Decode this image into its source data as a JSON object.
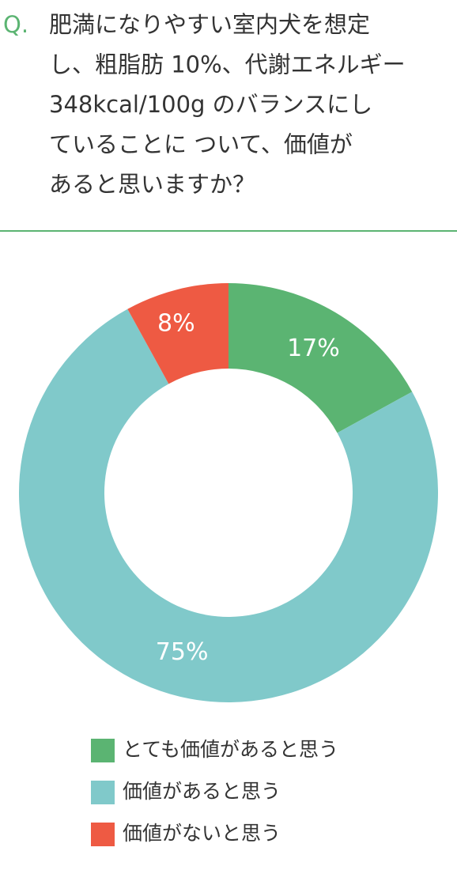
{
  "question": {
    "marker": "Q.",
    "lines": [
      "肥満になりやすい室内犬を想定",
      "し、粗脂肪 10%、代謝エネルギー",
      "348kcal/100g のバランスにし",
      "ていることに ついて、価値が",
      "あると思いますか？"
    ]
  },
  "chart_data": {
    "type": "donut",
    "categories": [
      "とても価値があると思う",
      "価値があると思う",
      "価値がないと思う"
    ],
    "values": [
      17,
      75,
      8
    ],
    "value_labels": [
      "17%",
      "75%",
      "8%"
    ],
    "colors": [
      "#5bb472",
      "#80c9ca",
      "#ee5a43"
    ]
  }
}
